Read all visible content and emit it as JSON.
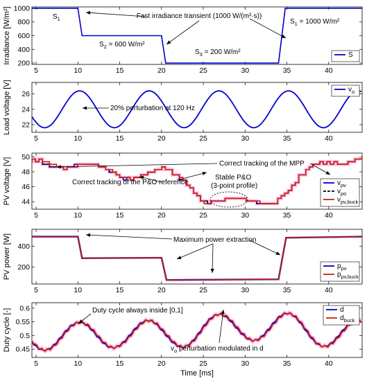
{
  "chart_data": [
    {
      "type": "line",
      "ylabel": "Irradiance [W/m²]",
      "xlim": [
        4.5,
        44
      ],
      "ylim": [
        180,
        1020
      ],
      "x_ticks": [
        "5",
        "10",
        "15",
        "20",
        "25",
        "30",
        "35",
        "40"
      ],
      "y_ticks": [
        "200",
        "400",
        "600",
        "800",
        "1000"
      ],
      "legend": {
        "location": "bottom-right",
        "entries": [
          {
            "base": "S",
            "sub": ""
          }
        ]
      },
      "series": [
        {
          "name": "S",
          "color": "#0000cc",
          "x": [
            4.5,
            10.0,
            10.5,
            20.0,
            20.5,
            34.0,
            34.8,
            44.0
          ],
          "y": [
            1000,
            1000,
            600,
            600,
            200,
            200,
            1000,
            1000
          ]
        }
      ],
      "annotations": [
        {
          "id": "transient",
          "text": "Fast irradiance transient (1000 W/(m²·s))"
        },
        {
          "id": "s1-left",
          "base": "S",
          "sub": "1",
          "rest": ""
        },
        {
          "id": "s2",
          "base": "S",
          "sub": "2",
          "rest": " = 600 W/m²"
        },
        {
          "id": "s3",
          "base": "S",
          "sub": "3",
          "rest": " = 200 W/m²"
        },
        {
          "id": "s1-right",
          "base": "S",
          "sub": "1",
          "rest": " = 1000 W/m²"
        }
      ]
    },
    {
      "type": "line",
      "ylabel": "Load voltage [V]",
      "xlim": [
        4.5,
        44
      ],
      "ylim": [
        21,
        27.5
      ],
      "x_ticks": [
        "5",
        "10",
        "15",
        "20",
        "25",
        "30",
        "35",
        "40"
      ],
      "y_ticks": [
        "22",
        "24",
        "26"
      ],
      "legend": {
        "location": "top-right",
        "entries": [
          {
            "base": "v",
            "sub": "o"
          }
        ]
      },
      "series": [
        {
          "name": "vo",
          "color": "#0000cc",
          "function": "sine",
          "mean": 24,
          "amplitude": 2.4,
          "frequency_hz": 120,
          "period_ms": 8.333,
          "peak_at_ms": 10.2
        }
      ],
      "annotations": [
        {
          "id": "perturb",
          "text": "20% perturbation at 120 Hz"
        }
      ]
    },
    {
      "type": "line",
      "ylabel": "PV voltage [V]",
      "xlim": [
        4.5,
        44
      ],
      "ylim": [
        43,
        50.5
      ],
      "x_ticks": [
        "5",
        "10",
        "15",
        "20",
        "25",
        "30",
        "35",
        "40"
      ],
      "y_ticks": [
        "44",
        "46",
        "48",
        "50"
      ],
      "legend": {
        "location": "bottom-right",
        "entries": [
          {
            "base": "v",
            "sub": "pv"
          },
          {
            "base": "v",
            "sub": "po"
          },
          {
            "base": "v",
            "sub": "pv,buck"
          }
        ]
      },
      "series": [
        {
          "name": "vpv",
          "color": "#0000cc"
        },
        {
          "name": "vpo",
          "color": "#000000",
          "dashed": true
        },
        {
          "name": "vpv,buck",
          "color": "#cc2200"
        }
      ],
      "envelope": {
        "x": [
          4.5,
          10,
          15,
          20,
          23,
          25,
          28,
          30,
          33,
          35,
          38,
          40,
          44
        ],
        "y": [
          49.2,
          49.0,
          47.5,
          48.0,
          46.5,
          44.4,
          44.0,
          43.9,
          44.2,
          45.5,
          48.5,
          49.5,
          49.7
        ]
      },
      "annotations": [
        {
          "id": "mpp",
          "text": "Correct tracking of the MPP"
        },
        {
          "id": "po",
          "text": "Correct tracking of the P&O reference"
        },
        {
          "id": "stable1",
          "text": "Stable P&O"
        },
        {
          "id": "stable2",
          "text": "(3-point profile)"
        }
      ]
    },
    {
      "type": "line",
      "ylabel": "PV power [W]",
      "xlim": [
        4.5,
        44
      ],
      "ylim": [
        40,
        560
      ],
      "x_ticks": [
        "5",
        "10",
        "15",
        "20",
        "25",
        "30",
        "35",
        "40"
      ],
      "y_ticks": [
        "200",
        "400"
      ],
      "legend": {
        "location": "bottom-right",
        "entries": [
          {
            "base": "p",
            "sub": "pv"
          },
          {
            "base": "p",
            "sub": "pv,buck"
          }
        ]
      },
      "series": [
        {
          "name": "ppv",
          "color": "#0000cc",
          "x": [
            4.5,
            10.0,
            10.5,
            20.0,
            20.6,
            34.0,
            34.9,
            44.0
          ],
          "y": [
            490,
            490,
            285,
            290,
            78,
            85,
            480,
            490
          ]
        },
        {
          "name": "ppv,buck",
          "color": "#cc2200",
          "x": [
            4.5,
            10.0,
            10.5,
            20.0,
            20.6,
            34.0,
            34.9,
            44.0
          ],
          "y": [
            490,
            490,
            285,
            290,
            78,
            85,
            480,
            490
          ]
        }
      ],
      "annotations": [
        {
          "id": "max",
          "text": "Maximum power extraction"
        }
      ]
    },
    {
      "type": "line",
      "ylabel": "Duty cycle [-]",
      "xlim": [
        4.5,
        44
      ],
      "ylim": [
        0.42,
        0.62
      ],
      "x_ticks": [
        "5",
        "10",
        "15",
        "20",
        "25",
        "30",
        "35",
        "40"
      ],
      "y_ticks": [
        "0.45",
        "0.5",
        "0.55",
        "0.6"
      ],
      "xlabel": "Time [ms]",
      "legend": {
        "location": "top-right",
        "entries": [
          {
            "base": "d",
            "sub": ""
          },
          {
            "base": "d",
            "sub": "buck"
          }
        ]
      },
      "series": [
        {
          "name": "d",
          "color": "#0000cc"
        },
        {
          "name": "dbuck",
          "color": "#cc2200"
        }
      ],
      "baseline": {
        "x": [
          4.5,
          10,
          15,
          20,
          25,
          30,
          35,
          40,
          44
        ],
        "y": [
          0.5,
          0.495,
          0.51,
          0.5,
          0.52,
          0.535,
          0.53,
          0.51,
          0.5
        ]
      },
      "oscillation": {
        "amplitude": 0.052,
        "period_ms": 8.333,
        "peak_at_ms": 10.2
      },
      "annotations": [
        {
          "id": "inside",
          "text": "Duty cycle always inside [0,1]"
        },
        {
          "id": "mod",
          "base": "v",
          "sub": "o",
          "rest": " perturbation modulated in d"
        }
      ]
    }
  ]
}
